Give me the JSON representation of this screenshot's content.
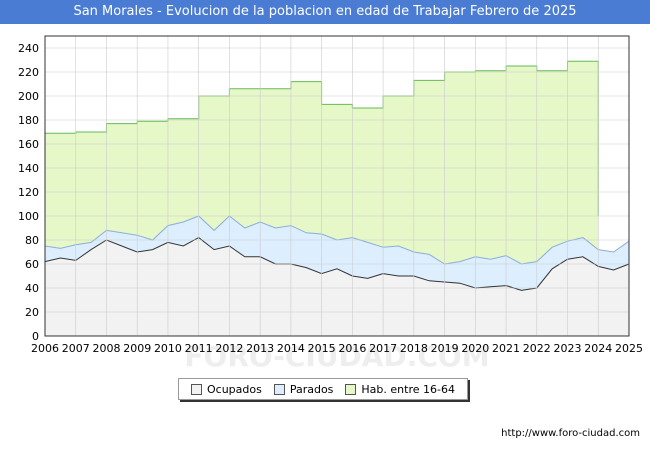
{
  "header": {
    "title": "San Morales - Evolucion de la poblacion en edad de Trabajar Febrero de 2025"
  },
  "source": "http://www.foro-ciudad.com",
  "watermark": "FORO-CIUDAD.COM",
  "colors": {
    "ocupados_fill": "#f2f2f2",
    "ocupados_line": "#333333",
    "parados_fill": "#ddeeff",
    "parados_line": "#8aaed9",
    "hab_fill": "#e6f7c8",
    "hab_line": "#66bb55",
    "grid": "#cccccc"
  },
  "chart_data": {
    "type": "area",
    "title": "San Morales - Evolucion de la poblacion en edad de Trabajar Febrero de 2025",
    "xlabel": "",
    "ylabel": "",
    "xlim": [
      2006,
      2025
    ],
    "ylim": [
      0,
      250
    ],
    "x_ticks": [
      "2006",
      "2007",
      "2008",
      "2009",
      "2010",
      "2011",
      "2012",
      "2013",
      "2014",
      "2015",
      "2016",
      "2017",
      "2018",
      "2019",
      "2020",
      "2021",
      "2022",
      "2023",
      "2024",
      "2025"
    ],
    "y_ticks": [
      0,
      20,
      40,
      60,
      80,
      100,
      120,
      140,
      160,
      180,
      200,
      220,
      240
    ],
    "grid": true,
    "legend_placement": "bottom",
    "legend": [
      "Ocupados",
      "Parados",
      "Hab. entre 16-64"
    ],
    "series": [
      {
        "name": "Hab. entre 16-64",
        "x": [
          2006,
          2007,
          2008,
          2009,
          2010,
          2011,
          2012,
          2013,
          2014,
          2015,
          2016,
          2017,
          2018,
          2019,
          2020,
          2021,
          2022,
          2023,
          2024
        ],
        "values": [
          169,
          170,
          177,
          179,
          181,
          200,
          206,
          206,
          212,
          193,
          190,
          200,
          213,
          220,
          221,
          225,
          221,
          229,
          229
        ]
      },
      {
        "name": "Parados",
        "x": [
          2006,
          2006.5,
          2007,
          2007.5,
          2008,
          2008.5,
          2009,
          2009.5,
          2010,
          2010.5,
          2011,
          2011.5,
          2012,
          2012.5,
          2013,
          2013.5,
          2014,
          2014.5,
          2015,
          2015.5,
          2016,
          2016.5,
          2017,
          2017.5,
          2018,
          2018.5,
          2019,
          2019.5,
          2020,
          2020.5,
          2021,
          2021.5,
          2022,
          2022.5,
          2023,
          2023.5,
          2024,
          2024.5,
          2025
        ],
        "values": [
          75,
          73,
          76,
          78,
          88,
          86,
          84,
          80,
          92,
          95,
          100,
          88,
          100,
          90,
          95,
          90,
          92,
          86,
          85,
          80,
          82,
          78,
          74,
          75,
          70,
          68,
          60,
          62,
          66,
          64,
          67,
          60,
          62,
          74,
          79,
          82,
          72,
          70,
          79
        ]
      },
      {
        "name": "Ocupados",
        "x": [
          2006,
          2006.5,
          2007,
          2007.5,
          2008,
          2008.5,
          2009,
          2009.5,
          2010,
          2010.5,
          2011,
          2011.5,
          2012,
          2012.5,
          2013,
          2013.5,
          2014,
          2014.5,
          2015,
          2015.5,
          2016,
          2016.5,
          2017,
          2017.5,
          2018,
          2018.5,
          2019,
          2019.5,
          2020,
          2020.5,
          2021,
          2021.5,
          2022,
          2022.5,
          2023,
          2023.5,
          2024,
          2024.5,
          2025
        ],
        "values": [
          62,
          65,
          63,
          72,
          80,
          75,
          70,
          72,
          78,
          75,
          82,
          72,
          75,
          66,
          66,
          60,
          60,
          57,
          52,
          56,
          50,
          48,
          52,
          50,
          50,
          46,
          45,
          44,
          40,
          41,
          42,
          38,
          40,
          56,
          64,
          66,
          58,
          55,
          60
        ]
      }
    ]
  }
}
